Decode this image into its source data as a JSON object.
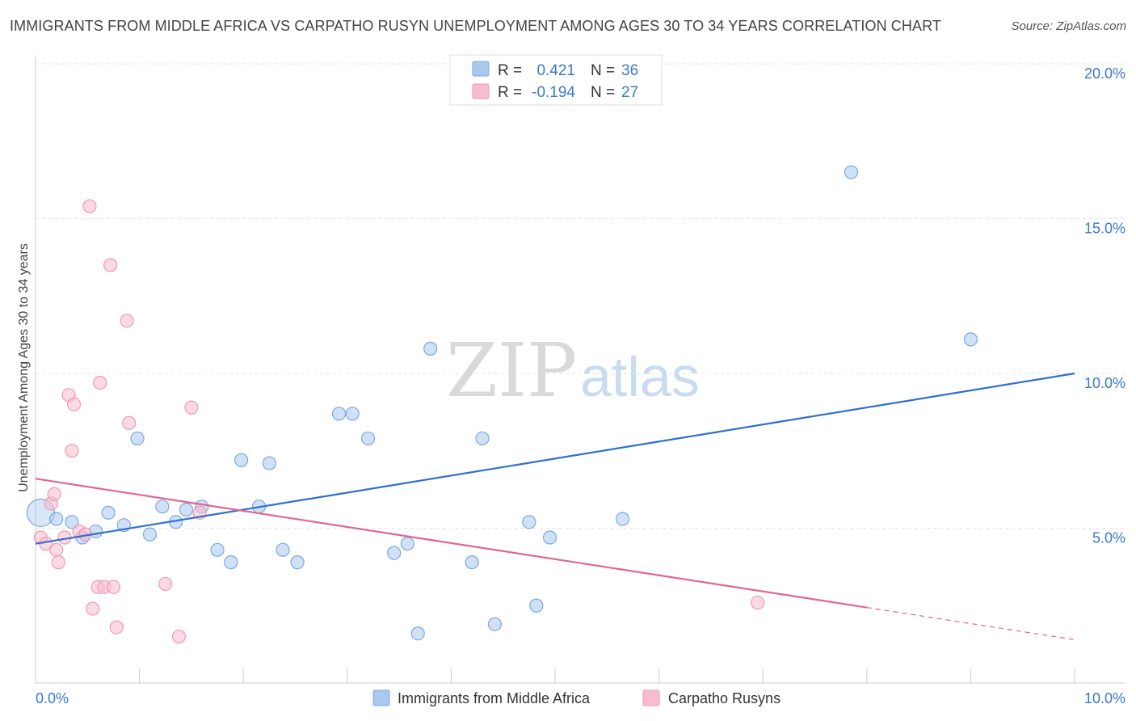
{
  "chart_data": {
    "type": "scatter",
    "title": "IMMIGRANTS FROM MIDDLE AFRICA VS CARPATHO RUSYN UNEMPLOYMENT AMONG AGES 30 TO 34 YEARS CORRELATION CHART",
    "source": "Source: ZipAtlas.com",
    "xlabel": "",
    "ylabel": "Unemployment Among Ages 30 to 34 years",
    "xlim": [
      0,
      10
    ],
    "ylim": [
      0,
      20
    ],
    "x_tick_labels": [
      {
        "value": 0,
        "label": "0.0%"
      },
      {
        "value": 10,
        "label": "10.0%"
      }
    ],
    "y_tick_labels": [
      {
        "value": 5,
        "label": "5.0%"
      },
      {
        "value": 10,
        "label": "10.0%"
      },
      {
        "value": 15,
        "label": "15.0%"
      },
      {
        "value": 20,
        "label": "20.0%"
      }
    ],
    "watermark": {
      "zip": "ZIP",
      "atlas": "atlas"
    },
    "legend": [
      {
        "r_label": "R =",
        "r_value": "0.421",
        "n_label": "N =",
        "n_value": "36"
      },
      {
        "r_label": "R =",
        "r_value": "-0.194",
        "n_label": "N =",
        "n_value": "27"
      }
    ],
    "series": [
      {
        "name": "Immigrants from Middle Africa",
        "color": "#a9c8f0",
        "stroke": "#7aa8e0",
        "line_color": "#2f6fcf",
        "trend": {
          "x0": 0,
          "y0": 4.5,
          "x1": 10,
          "y1": 10.0,
          "solid_until": 10
        },
        "points": [
          [
            0.05,
            5.5
          ],
          [
            0.2,
            5.3
          ],
          [
            0.35,
            5.2
          ],
          [
            0.45,
            4.7
          ],
          [
            0.58,
            4.9
          ],
          [
            0.7,
            5.5
          ],
          [
            0.85,
            5.1
          ],
          [
            0.98,
            7.9
          ],
          [
            1.1,
            4.8
          ],
          [
            1.22,
            5.7
          ],
          [
            1.35,
            5.2
          ],
          [
            1.45,
            5.6
          ],
          [
            1.6,
            5.7
          ],
          [
            1.75,
            4.3
          ],
          [
            1.88,
            3.9
          ],
          [
            1.98,
            7.2
          ],
          [
            2.15,
            5.7
          ],
          [
            2.25,
            7.1
          ],
          [
            2.38,
            4.3
          ],
          [
            2.52,
            3.9
          ],
          [
            2.92,
            8.7
          ],
          [
            3.05,
            8.7
          ],
          [
            3.2,
            7.9
          ],
          [
            3.45,
            4.2
          ],
          [
            3.58,
            4.5
          ],
          [
            3.68,
            1.6
          ],
          [
            3.8,
            10.8
          ],
          [
            4.2,
            3.9
          ],
          [
            4.3,
            7.9
          ],
          [
            4.42,
            1.9
          ],
          [
            4.75,
            5.2
          ],
          [
            4.82,
            2.5
          ],
          [
            4.95,
            4.7
          ],
          [
            5.65,
            5.3
          ],
          [
            7.85,
            16.5
          ],
          [
            9.0,
            11.1
          ]
        ]
      },
      {
        "name": "Carpatho Rusyns",
        "color": "#f7bccd",
        "stroke": "#ee99b3",
        "line_color": "#e06690",
        "trend": {
          "x0": 0,
          "y0": 6.6,
          "x1": 10,
          "y1": 1.4,
          "solid_until": 8.0
        },
        "points": [
          [
            0.05,
            4.7
          ],
          [
            0.1,
            4.5
          ],
          [
            0.15,
            5.8
          ],
          [
            0.18,
            6.1
          ],
          [
            0.2,
            4.3
          ],
          [
            0.22,
            3.9
          ],
          [
            0.28,
            4.7
          ],
          [
            0.32,
            9.3
          ],
          [
            0.37,
            9.0
          ],
          [
            0.35,
            7.5
          ],
          [
            0.42,
            4.9
          ],
          [
            0.48,
            4.8
          ],
          [
            0.52,
            15.4
          ],
          [
            0.55,
            2.4
          ],
          [
            0.6,
            3.1
          ],
          [
            0.62,
            9.7
          ],
          [
            0.66,
            3.1
          ],
          [
            0.72,
            13.5
          ],
          [
            0.75,
            3.1
          ],
          [
            0.78,
            1.8
          ],
          [
            0.88,
            11.7
          ],
          [
            0.9,
            8.4
          ],
          [
            1.25,
            3.2
          ],
          [
            1.38,
            1.5
          ],
          [
            1.5,
            8.9
          ],
          [
            1.58,
            5.5
          ],
          [
            6.95,
            2.6
          ]
        ]
      }
    ]
  }
}
